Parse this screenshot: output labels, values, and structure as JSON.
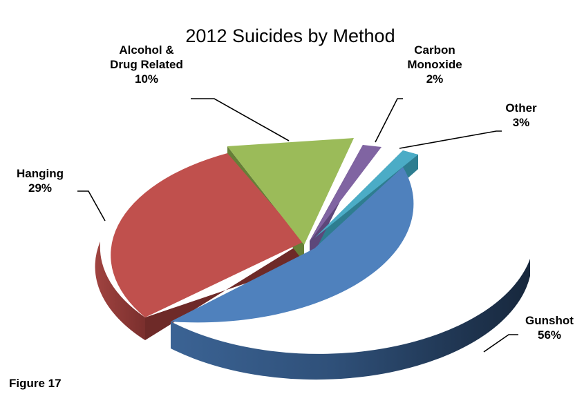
{
  "chart_data": {
    "type": "pie",
    "title": "2012 Suicides by Method",
    "three_d": true,
    "exploded": true,
    "slices": [
      {
        "name": "Gunshot",
        "value": 56,
        "percent_label": "56%",
        "color": "#4F81BD"
      },
      {
        "name": "Hanging",
        "value": 29,
        "percent_label": "29%",
        "color": "#C0504D"
      },
      {
        "name": "Alcohol & Drug Related",
        "label_lines": [
          "Alcohol &",
          "Drug Related"
        ],
        "value": 10,
        "percent_label": "10%",
        "color": "#9BBB59"
      },
      {
        "name": "Carbon Monoxide",
        "label_lines": [
          "Carbon",
          "Monoxide"
        ],
        "value": 2,
        "percent_label": "2%",
        "color": "#8064A2"
      },
      {
        "name": "Other",
        "value": 3,
        "percent_label": "3%",
        "color": "#4BACC6"
      }
    ],
    "legend": "none"
  },
  "footer": {
    "figure_label": "Figure 17"
  }
}
